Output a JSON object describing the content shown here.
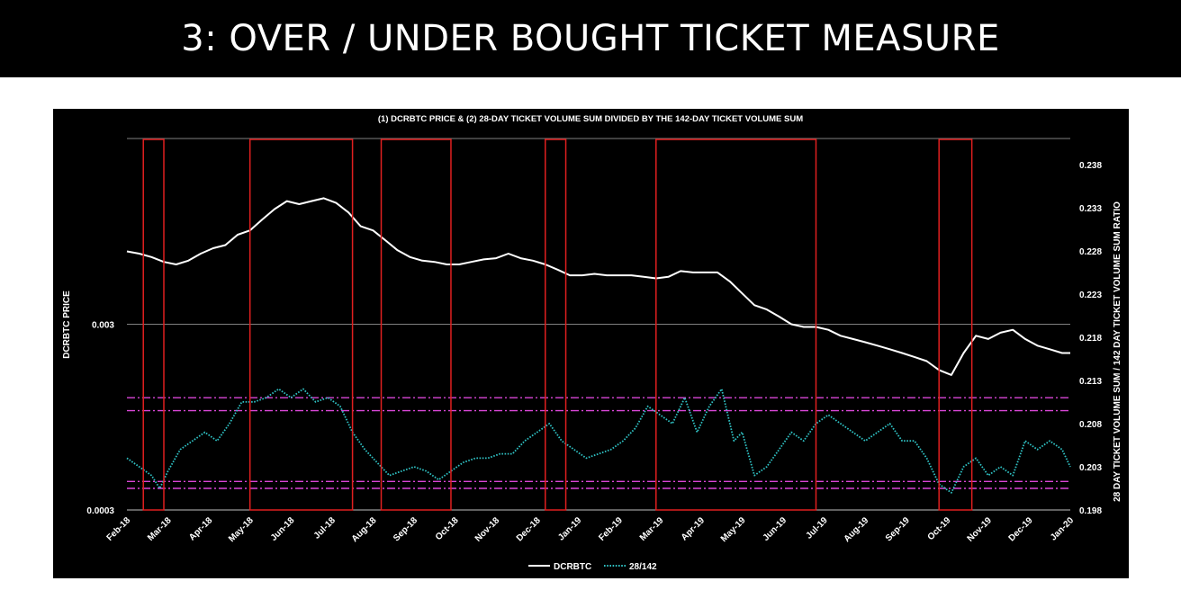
{
  "slide": {
    "title": "3: OVER / UNDER BOUGHT TICKET MEASURE"
  },
  "chart_data": {
    "type": "line",
    "title": "(1) DCRBTC PRICE & (2) 28-DAY TICKET VOLUME SUM DIVIDED BY THE 142-DAY TICKET VOLUME SUM",
    "ylabel": "DCRBTC PRICE",
    "y2label": "28 DAY TICKET VOLUME SUM / 142 DAY TICKET VOLUME SUM RATIO",
    "y_scale": "log",
    "y_ticks": [
      {
        "value": 0.003,
        "label": "0.003"
      },
      {
        "value": 0.0003,
        "label": "0.0003"
      }
    ],
    "y2lim": [
      0.198,
      0.241
    ],
    "y2_ticks": [
      "0.198",
      "0.203",
      "0.208",
      "0.213",
      "0.218",
      "0.223",
      "0.228",
      "0.233",
      "0.238"
    ],
    "x_ticks": [
      "Feb-18",
      "Mar-18",
      "Apr-18",
      "May-18",
      "Jun-18",
      "Jul-18",
      "Aug-18",
      "Sep-18",
      "Oct-18",
      "Nov-18",
      "Dec-18",
      "Jan-19",
      "Feb-19",
      "Mar-19",
      "Apr-19",
      "May-19",
      "Jun-19",
      "Jul-19",
      "Aug-19",
      "Sep-19",
      "Oct-19",
      "Nov-19",
      "Dec-19",
      "Jan-20"
    ],
    "legend": {
      "position": "bottom",
      "entries": [
        "DCRBTC",
        "28/142"
      ]
    },
    "series": [
      {
        "name": "DCRBTC",
        "axis": "left",
        "color": "#ffffff",
        "style": "solid",
        "points": [
          [
            0,
            0.0074
          ],
          [
            0.3,
            0.0072
          ],
          [
            0.6,
            0.0069
          ],
          [
            0.9,
            0.0065
          ],
          [
            1.2,
            0.0063
          ],
          [
            1.5,
            0.0066
          ],
          [
            1.8,
            0.0072
          ],
          [
            2.1,
            0.0077
          ],
          [
            2.4,
            0.008
          ],
          [
            2.7,
            0.0091
          ],
          [
            3.0,
            0.0096
          ],
          [
            3.3,
            0.011
          ],
          [
            3.6,
            0.0125
          ],
          [
            3.9,
            0.0138
          ],
          [
            4.2,
            0.0133
          ],
          [
            4.5,
            0.0138
          ],
          [
            4.8,
            0.0143
          ],
          [
            5.1,
            0.0135
          ],
          [
            5.4,
            0.012
          ],
          [
            5.7,
            0.0101
          ],
          [
            6.0,
            0.0096
          ],
          [
            6.3,
            0.0085
          ],
          [
            6.6,
            0.0075
          ],
          [
            6.9,
            0.0069
          ],
          [
            7.2,
            0.0066
          ],
          [
            7.5,
            0.0065
          ],
          [
            7.8,
            0.0063
          ],
          [
            8.1,
            0.0063
          ],
          [
            8.4,
            0.0065
          ],
          [
            8.7,
            0.0067
          ],
          [
            9.0,
            0.0068
          ],
          [
            9.3,
            0.0072
          ],
          [
            9.6,
            0.0068
          ],
          [
            9.9,
            0.0066
          ],
          [
            10.2,
            0.0063
          ],
          [
            10.5,
            0.0059
          ],
          [
            10.8,
            0.0055
          ],
          [
            11.1,
            0.0055
          ],
          [
            11.4,
            0.0056
          ],
          [
            11.7,
            0.0055
          ],
          [
            12.0,
            0.0055
          ],
          [
            12.3,
            0.0055
          ],
          [
            12.6,
            0.0054
          ],
          [
            12.9,
            0.0053
          ],
          [
            13.2,
            0.0054
          ],
          [
            13.5,
            0.0058
          ],
          [
            13.8,
            0.0057
          ],
          [
            14.1,
            0.0057
          ],
          [
            14.4,
            0.0057
          ],
          [
            14.7,
            0.0051
          ],
          [
            15.0,
            0.0044
          ],
          [
            15.3,
            0.0038
          ],
          [
            15.6,
            0.0036
          ],
          [
            15.9,
            0.0033
          ],
          [
            16.2,
            0.003
          ],
          [
            16.5,
            0.0029
          ],
          [
            16.8,
            0.0029
          ],
          [
            17.1,
            0.0028
          ],
          [
            17.4,
            0.0026
          ],
          [
            17.7,
            0.0025
          ],
          [
            18.0,
            0.0024
          ],
          [
            18.3,
            0.0023
          ],
          [
            18.6,
            0.0022
          ],
          [
            18.9,
            0.0021
          ],
          [
            19.2,
            0.002
          ],
          [
            19.5,
            0.0019
          ],
          [
            19.8,
            0.0017
          ],
          [
            20.1,
            0.0016
          ],
          [
            20.4,
            0.0021
          ],
          [
            20.7,
            0.0026
          ],
          [
            21.0,
            0.0025
          ],
          [
            21.3,
            0.0027
          ],
          [
            21.6,
            0.0028
          ],
          [
            21.9,
            0.0025
          ],
          [
            22.2,
            0.0023
          ],
          [
            22.5,
            0.0022
          ],
          [
            22.8,
            0.0021
          ],
          [
            23.0,
            0.0021
          ]
        ]
      },
      {
        "name": "28/142",
        "axis": "right",
        "color": "#2fc2c4",
        "style": "dotted",
        "points": [
          [
            0,
            0.204
          ],
          [
            0.3,
            0.203
          ],
          [
            0.6,
            0.202
          ],
          [
            0.8,
            0.2005
          ],
          [
            1.0,
            0.2025
          ],
          [
            1.3,
            0.205
          ],
          [
            1.6,
            0.206
          ],
          [
            1.9,
            0.207
          ],
          [
            2.2,
            0.206
          ],
          [
            2.5,
            0.208
          ],
          [
            2.8,
            0.2105
          ],
          [
            3.1,
            0.2105
          ],
          [
            3.4,
            0.211
          ],
          [
            3.7,
            0.212
          ],
          [
            4.0,
            0.211
          ],
          [
            4.3,
            0.212
          ],
          [
            4.6,
            0.2105
          ],
          [
            4.9,
            0.211
          ],
          [
            5.2,
            0.21
          ],
          [
            5.5,
            0.207
          ],
          [
            5.8,
            0.205
          ],
          [
            6.1,
            0.2035
          ],
          [
            6.4,
            0.202
          ],
          [
            6.7,
            0.2025
          ],
          [
            7.0,
            0.203
          ],
          [
            7.3,
            0.2025
          ],
          [
            7.6,
            0.2015
          ],
          [
            7.9,
            0.2025
          ],
          [
            8.2,
            0.2035
          ],
          [
            8.5,
            0.204
          ],
          [
            8.8,
            0.204
          ],
          [
            9.1,
            0.2045
          ],
          [
            9.4,
            0.2045
          ],
          [
            9.7,
            0.206
          ],
          [
            10.0,
            0.207
          ],
          [
            10.3,
            0.208
          ],
          [
            10.6,
            0.206
          ],
          [
            10.9,
            0.205
          ],
          [
            11.2,
            0.204
          ],
          [
            11.5,
            0.2045
          ],
          [
            11.8,
            0.205
          ],
          [
            12.1,
            0.206
          ],
          [
            12.4,
            0.2075
          ],
          [
            12.7,
            0.21
          ],
          [
            13.0,
            0.209
          ],
          [
            13.3,
            0.208
          ],
          [
            13.6,
            0.211
          ],
          [
            13.9,
            0.207
          ],
          [
            14.2,
            0.21
          ],
          [
            14.5,
            0.212
          ],
          [
            14.8,
            0.206
          ],
          [
            15.0,
            0.207
          ],
          [
            15.3,
            0.202
          ],
          [
            15.6,
            0.203
          ],
          [
            15.9,
            0.205
          ],
          [
            16.2,
            0.207
          ],
          [
            16.5,
            0.206
          ],
          [
            16.8,
            0.208
          ],
          [
            17.1,
            0.209
          ],
          [
            17.4,
            0.208
          ],
          [
            17.7,
            0.207
          ],
          [
            18.0,
            0.206
          ],
          [
            18.3,
            0.207
          ],
          [
            18.6,
            0.208
          ],
          [
            18.9,
            0.206
          ],
          [
            19.2,
            0.206
          ],
          [
            19.5,
            0.204
          ],
          [
            19.8,
            0.201
          ],
          [
            20.1,
            0.2
          ],
          [
            20.4,
            0.203
          ],
          [
            20.7,
            0.204
          ],
          [
            21.0,
            0.202
          ],
          [
            21.3,
            0.203
          ],
          [
            21.6,
            0.202
          ],
          [
            21.9,
            0.206
          ],
          [
            22.2,
            0.205
          ],
          [
            22.5,
            0.206
          ],
          [
            22.8,
            0.205
          ],
          [
            23.0,
            0.203
          ]
        ]
      }
    ],
    "bands": {
      "axis": "right",
      "style": "dash-dot",
      "color": "#d946d6",
      "upper": [
        0.2095,
        0.211
      ],
      "lower": [
        0.2005,
        0.2013
      ]
    },
    "highlight_boxes": {
      "color": "#e01f1f",
      "ranges": [
        [
          0.4,
          0.9
        ],
        [
          3.0,
          5.5
        ],
        [
          6.2,
          7.9
        ],
        [
          10.2,
          10.7
        ],
        [
          12.9,
          16.8
        ],
        [
          19.8,
          20.6
        ]
      ]
    }
  }
}
